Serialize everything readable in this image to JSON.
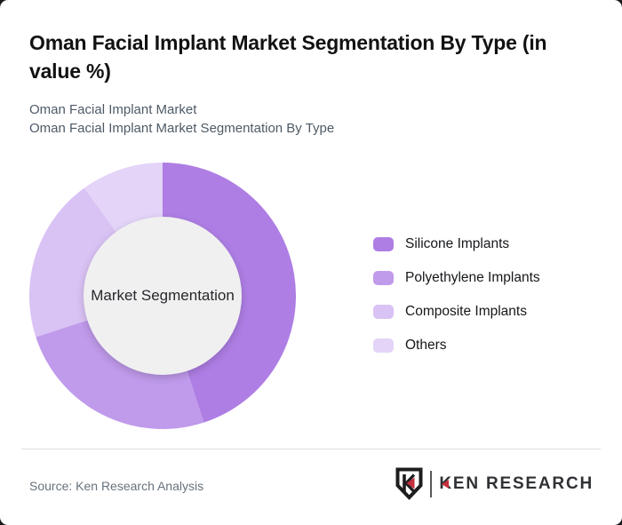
{
  "header": {
    "title": "Oman Facial Implant Market Segmentation By Type (in value %)",
    "title_line1": "Oman Facial Implant Market Segmentation By Type (in",
    "title_line2": "value %)",
    "subtitle_line1": "Oman Facial Implant Market",
    "subtitle_line2": "Oman Facial Implant Market Segmentation By Type"
  },
  "chart_data": {
    "type": "pie",
    "variant": "donut",
    "title": "Oman Facial Implant Market Segmentation By Type (in value %)",
    "center_label": "Market Segmentation",
    "categories": [
      "Silicone Implants",
      "Polyethylene Implants",
      "Composite Implants",
      "Others"
    ],
    "values": [
      45,
      25,
      20,
      10
    ],
    "colors": [
      "#AE7EE4",
      "#C09AEB",
      "#D9C2F4",
      "#E3D4F8"
    ],
    "start_angle_deg": 0,
    "direction": "clockwise",
    "inner_radius_ratio": 0.593,
    "hole_color": "#F0F0F1",
    "legend_position": "right"
  },
  "footer": {
    "source": "Source: Ken Research Analysis",
    "logo_k": "K",
    "logo_rest": "EN RESEARCH"
  },
  "colors": {
    "accent_red": "#C5303E",
    "card_bg": "#FFFFFF",
    "page_bg": "#1B1B1D",
    "divider": "#DCDCDC"
  }
}
